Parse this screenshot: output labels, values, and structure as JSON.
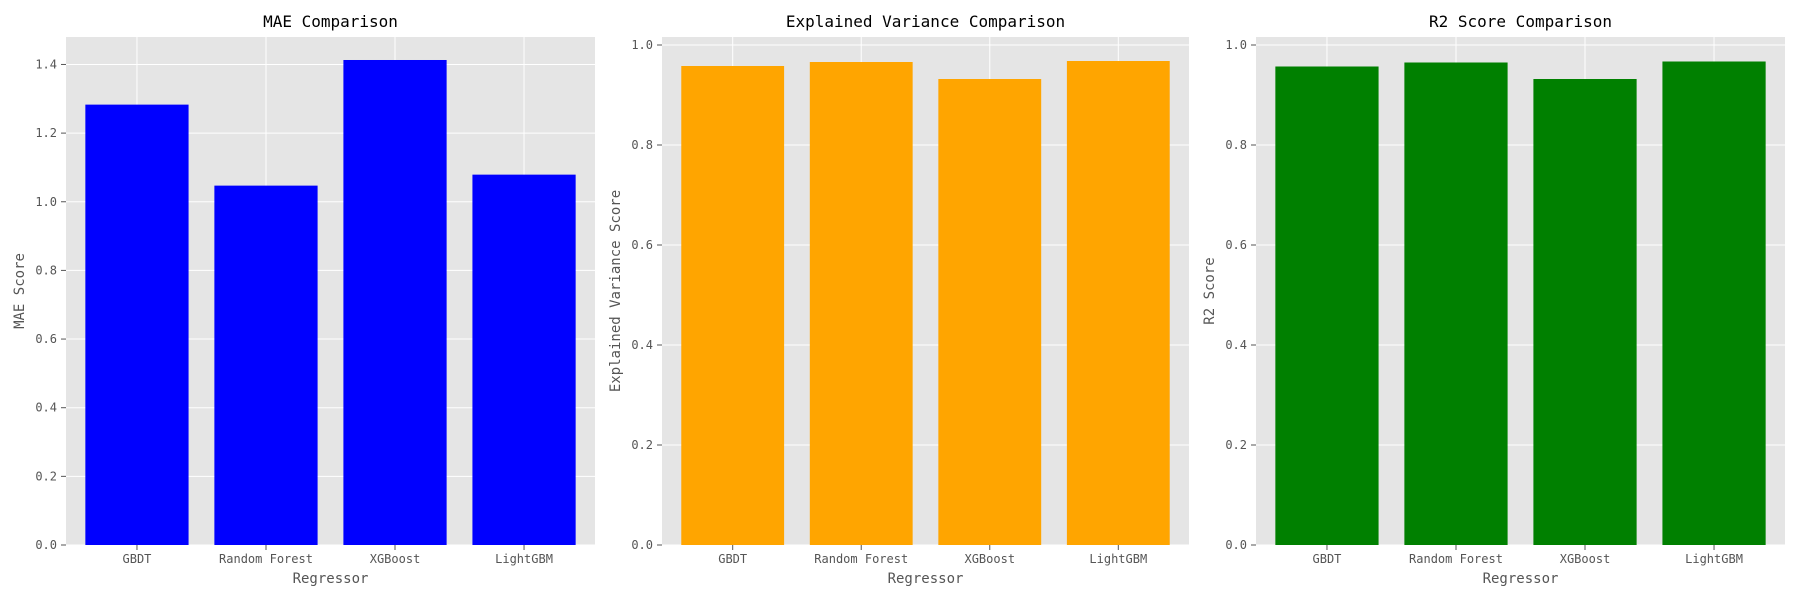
{
  "chart_data": [
    {
      "type": "bar",
      "title": "MAE Comparison",
      "xlabel": "Regressor",
      "ylabel": "MAE Score",
      "categories": [
        "GBDT",
        "Random Forest",
        "XGBoost",
        "LightGBM"
      ],
      "values": [
        1.283,
        1.047,
        1.413,
        1.079
      ],
      "ylim": [
        0,
        1.48
      ],
      "yticks": [
        0.0,
        0.2,
        0.4,
        0.6,
        0.8,
        1.0,
        1.2,
        1.4
      ],
      "ytick_labels": [
        "0.0",
        "0.2",
        "0.4",
        "0.6",
        "0.8",
        "1.0",
        "1.2",
        "1.4"
      ],
      "color": "#0000ff",
      "grid": true
    },
    {
      "type": "bar",
      "title": "Explained Variance Comparison",
      "xlabel": "Regressor",
      "ylabel": "Explained Variance Score",
      "categories": [
        "GBDT",
        "Random Forest",
        "XGBoost",
        "LightGBM"
      ],
      "values": [
        0.958,
        0.966,
        0.932,
        0.968
      ],
      "ylim": [
        0,
        1.016
      ],
      "yticks": [
        0.0,
        0.2,
        0.4,
        0.6,
        0.8,
        1.0
      ],
      "ytick_labels": [
        "0.0",
        "0.2",
        "0.4",
        "0.6",
        "0.8",
        "1.0"
      ],
      "color": "#ffa500",
      "grid": true
    },
    {
      "type": "bar",
      "title": "R2 Score Comparison",
      "xlabel": "Regressor",
      "ylabel": "R2 Score",
      "categories": [
        "GBDT",
        "Random Forest",
        "XGBoost",
        "LightGBM"
      ],
      "values": [
        0.957,
        0.965,
        0.932,
        0.967
      ],
      "ylim": [
        0,
        1.016
      ],
      "yticks": [
        0.0,
        0.2,
        0.4,
        0.6,
        0.8,
        1.0
      ],
      "ytick_labels": [
        "0.0",
        "0.2",
        "0.4",
        "0.6",
        "0.8",
        "1.0"
      ],
      "color": "#008000",
      "grid": true
    }
  ]
}
